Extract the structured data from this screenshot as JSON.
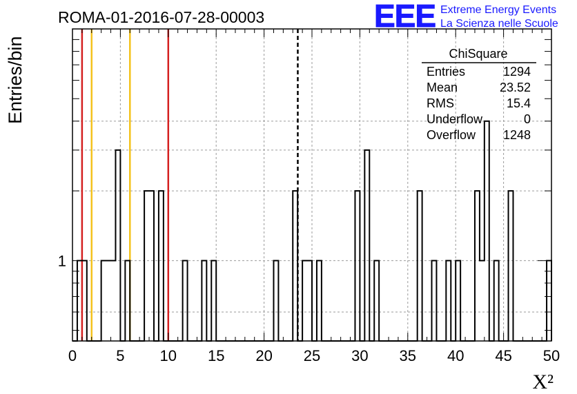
{
  "title": "ROMA-01-2016-07-28-00003",
  "logo": {
    "text": "EEE",
    "line1": "Extreme Energy Events",
    "line2": "La Scienza nelle Scuole",
    "color": "#1a1aff"
  },
  "chart_data": {
    "type": "histogram",
    "xlabel": "X²",
    "ylabel": "Entries/bin",
    "xlim": [
      0,
      50
    ],
    "ylim": [
      0.45,
      10
    ],
    "log_y": true,
    "grid": true,
    "bin_width": 0.5,
    "x_ticks": [
      "0",
      "5",
      "10",
      "15",
      "20",
      "25",
      "30",
      "35",
      "40",
      "45",
      "50"
    ],
    "y_ticks": [
      "1"
    ],
    "bins": [
      {
        "x": 0.5,
        "y": 1
      },
      {
        "x": 1.0,
        "y": 1
      },
      {
        "x": 3.0,
        "y": 1
      },
      {
        "x": 3.5,
        "y": 1
      },
      {
        "x": 4.0,
        "y": 1
      },
      {
        "x": 4.5,
        "y": 3
      },
      {
        "x": 5.5,
        "y": 1
      },
      {
        "x": 7.5,
        "y": 2
      },
      {
        "x": 8.0,
        "y": 2
      },
      {
        "x": 9.0,
        "y": 2
      },
      {
        "x": 11.5,
        "y": 1
      },
      {
        "x": 13.5,
        "y": 1
      },
      {
        "x": 14.5,
        "y": 1
      },
      {
        "x": 21.0,
        "y": 1
      },
      {
        "x": 23.0,
        "y": 2
      },
      {
        "x": 24.0,
        "y": 1
      },
      {
        "x": 24.5,
        "y": 1
      },
      {
        "x": 25.5,
        "y": 1
      },
      {
        "x": 29.5,
        "y": 2
      },
      {
        "x": 30.5,
        "y": 3
      },
      {
        "x": 31.5,
        "y": 1
      },
      {
        "x": 36.0,
        "y": 2
      },
      {
        "x": 37.5,
        "y": 1
      },
      {
        "x": 39.0,
        "y": 1
      },
      {
        "x": 40.0,
        "y": 1
      },
      {
        "x": 42.0,
        "y": 2
      },
      {
        "x": 42.5,
        "y": 1
      },
      {
        "x": 43.0,
        "y": 4
      },
      {
        "x": 44.0,
        "y": 1
      },
      {
        "x": 45.5,
        "y": 2
      },
      {
        "x": 49.5,
        "y": 1
      }
    ],
    "vertical_lines": [
      {
        "x": 1,
        "color": "#d42020",
        "style": "solid"
      },
      {
        "x": 2,
        "color": "#f4c21c",
        "style": "solid"
      },
      {
        "x": 6,
        "color": "#f4c21c",
        "style": "solid"
      },
      {
        "x": 10,
        "color": "#d42020",
        "style": "solid"
      },
      {
        "x": 23.52,
        "color": "#000000",
        "style": "dashed"
      }
    ],
    "stats": {
      "title": "ChiSquare",
      "rows": [
        {
          "label": "Entries",
          "value": "1294"
        },
        {
          "label": "Mean",
          "value": "23.52"
        },
        {
          "label": "RMS",
          "value": "15.4"
        },
        {
          "label": "Underflow",
          "value": "0"
        },
        {
          "label": "Overflow",
          "value": "1248"
        }
      ]
    }
  }
}
